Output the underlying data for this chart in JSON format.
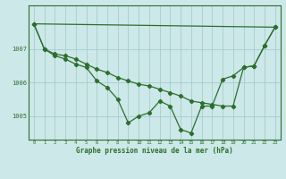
{
  "x": [
    0,
    1,
    2,
    3,
    4,
    5,
    6,
    7,
    8,
    9,
    10,
    11,
    12,
    13,
    14,
    15,
    16,
    17,
    18,
    19,
    20,
    21,
    22,
    23
  ],
  "series1": [
    1007.75,
    1007.0,
    1006.8,
    1006.7,
    1006.55,
    1006.45,
    1006.05,
    1005.85,
    1005.5,
    1004.8,
    1005.0,
    1005.1,
    1005.45,
    1005.3,
    1004.6,
    1004.5,
    1005.3,
    1005.3,
    1006.1,
    1006.2,
    1006.45,
    1006.5,
    1007.1,
    1007.65
  ],
  "series2": [
    1007.75,
    1007.0,
    1006.85,
    1006.8,
    1006.7,
    1006.55,
    1006.4,
    1006.3,
    1006.15,
    1006.05,
    1005.95,
    1005.9,
    1005.8,
    1005.7,
    1005.6,
    1005.45,
    1005.4,
    1005.35,
    1005.3,
    1005.3,
    1006.45,
    1006.5,
    1007.1,
    1007.65
  ],
  "line_color": "#2d6e2d",
  "bg_color": "#cce8e8",
  "grid_color": "#a8cccc",
  "xlabel": "Graphe pression niveau de la mer (hPa)",
  "ylim": [
    1004.3,
    1008.3
  ],
  "yticks": [
    1005,
    1006,
    1007
  ],
  "xticks": [
    0,
    1,
    2,
    3,
    4,
    5,
    6,
    7,
    8,
    9,
    10,
    11,
    12,
    13,
    14,
    15,
    16,
    17,
    18,
    19,
    20,
    21,
    22,
    23
  ],
  "marker": "D",
  "markersize": 2.2,
  "linewidth": 0.9,
  "tick_fontsize": 4.0,
  "label_fontsize": 5.5
}
